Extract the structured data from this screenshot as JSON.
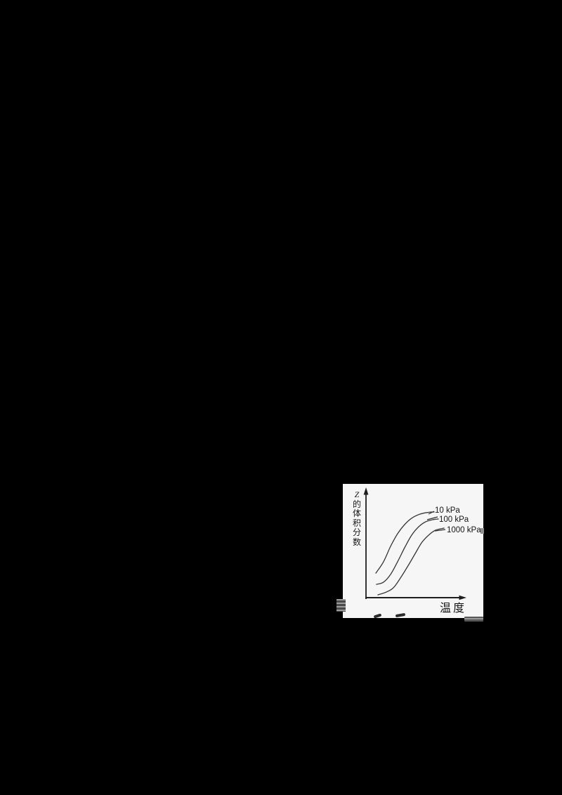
{
  "page": {
    "background_color": "#000000",
    "note_colors": {
      "panel_bg": "#f6f6f6",
      "axis_color": "#1e1e1e",
      "curve_color": "#3a3a3a",
      "label_color": "#151515"
    }
  },
  "chart_data": {
    "type": "line",
    "title": "",
    "xlabel": "温度",
    "ylabel": "Z的体积分数",
    "ylabel_orientation": "vertical-stacked",
    "axes": {
      "x_ticks": [],
      "y_ticks": [],
      "style": "qualitative sketch, unlabeled axes with arrowheads"
    },
    "legend_position": "inline labels at right end of each curve with short leader dash",
    "x_normalized_range": [
      0,
      1
    ],
    "y_normalized_range": [
      0,
      1
    ],
    "series": [
      {
        "name": "10 kPa",
        "x": [
          0.102,
          0.182,
          0.255,
          0.328,
          0.401,
          0.474,
          0.562,
          0.65,
          0.708
        ],
        "y": [
          0.236,
          0.345,
          0.493,
          0.615,
          0.703,
          0.764,
          0.804,
          0.821,
          0.824
        ]
      },
      {
        "name": "100 kPa",
        "x": [
          0.109,
          0.182,
          0.255,
          0.328,
          0.401,
          0.474,
          0.547,
          0.62,
          0.693,
          0.752
        ],
        "y": [
          0.128,
          0.149,
          0.223,
          0.345,
          0.48,
          0.601,
          0.682,
          0.73,
          0.75,
          0.757
        ]
      },
      {
        "name": "1000 kPa",
        "x": [
          0.124,
          0.212,
          0.285,
          0.358,
          0.431,
          0.504,
          0.577,
          0.65,
          0.723,
          0.81
        ],
        "y": [
          0.027,
          0.054,
          0.095,
          0.189,
          0.297,
          0.412,
          0.527,
          0.601,
          0.649,
          0.669
        ]
      }
    ]
  }
}
